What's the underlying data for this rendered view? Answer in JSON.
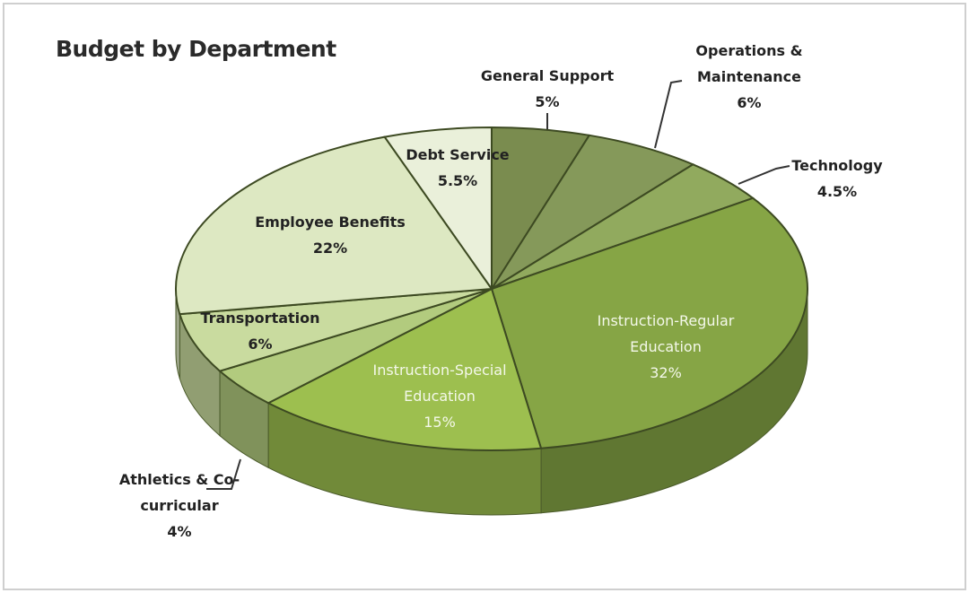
{
  "chart_data": {
    "type": "pie",
    "title": "Budget by Department",
    "categories": [
      "General Support",
      "Operations & Maintenance",
      "Technology",
      "Instruction-Regular Education",
      "Instruction-Special Education",
      "Athletics & Co-curricular",
      "Transportation",
      "Employee Benefits",
      "Debt Service"
    ],
    "values": [
      5,
      6,
      4.5,
      32,
      15,
      4,
      6,
      22,
      5.5
    ],
    "value_labels": [
      "5%",
      "6%",
      "4.5%",
      "32%",
      "15%",
      "4%",
      "6%",
      "22%",
      "5.5%"
    ],
    "colors": [
      "#7a8c4f",
      "#85995a",
      "#91aa5e",
      "#86a545",
      "#9dbf4f",
      "#b2cb7e",
      "#c9db9f",
      "#dde8c2",
      "#eaf0da"
    ]
  }
}
